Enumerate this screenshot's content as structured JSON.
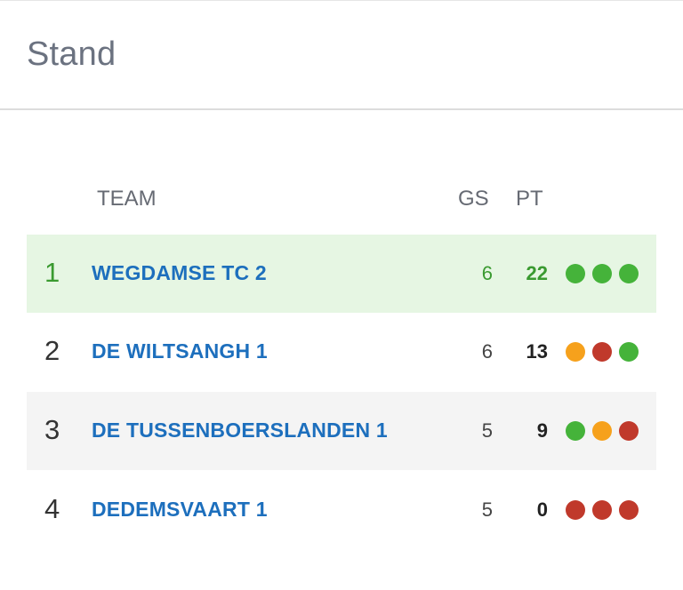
{
  "header": {
    "title": "Stand"
  },
  "columns": {
    "team": "TEAM",
    "gs": "GS",
    "pt": "PT"
  },
  "colors": {
    "win": "#45b33a",
    "draw": "#f6a11c",
    "loss": "#c0392b"
  },
  "rows": [
    {
      "rank": "1",
      "team": "WEGDAMSE TC 2",
      "gs": "6",
      "pt": "22",
      "form": [
        "win",
        "win",
        "win"
      ]
    },
    {
      "rank": "2",
      "team": "DE WILTSANGH 1",
      "gs": "6",
      "pt": "13",
      "form": [
        "draw",
        "loss",
        "win"
      ]
    },
    {
      "rank": "3",
      "team": "DE TUSSENBOERSLANDEN 1",
      "gs": "5",
      "pt": "9",
      "form": [
        "win",
        "draw",
        "loss"
      ]
    },
    {
      "rank": "4",
      "team": "DEDEMSVAART 1",
      "gs": "5",
      "pt": "0",
      "form": [
        "loss",
        "loss",
        "loss"
      ]
    }
  ]
}
